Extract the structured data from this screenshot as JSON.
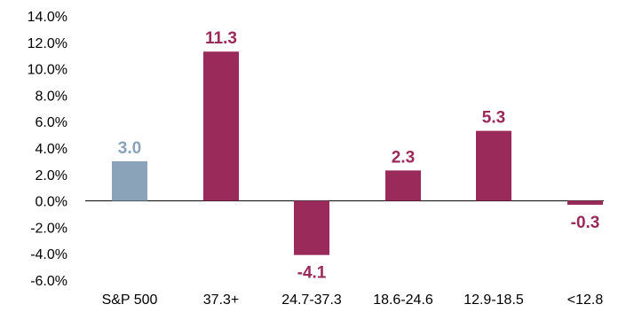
{
  "chart_data": {
    "type": "bar",
    "categories": [
      "S&P 500",
      "37.3+",
      "24.7-37.3",
      "18.6-24.6",
      "12.9-18.5",
      "<12.8"
    ],
    "values": [
      3.0,
      11.3,
      -4.1,
      2.3,
      5.3,
      -0.3
    ],
    "data_labels": [
      "3.0",
      "11.3",
      "-4.1",
      "2.3",
      "5.3",
      "-0.3"
    ],
    "y_tick_labels": [
      "14.0%",
      "12.0%",
      "10.0%",
      "8.0%",
      "6.0%",
      "4.0%",
      "2.0%",
      "0.0%",
      "-2.0%",
      "-4.0%",
      "-6.0%"
    ],
    "ylim": [
      -6,
      14
    ],
    "grid": false,
    "legend": "none",
    "colors": {
      "benchmark": "#8aa3b8",
      "bars": "#9a2a5a",
      "axis": "#000000"
    }
  }
}
